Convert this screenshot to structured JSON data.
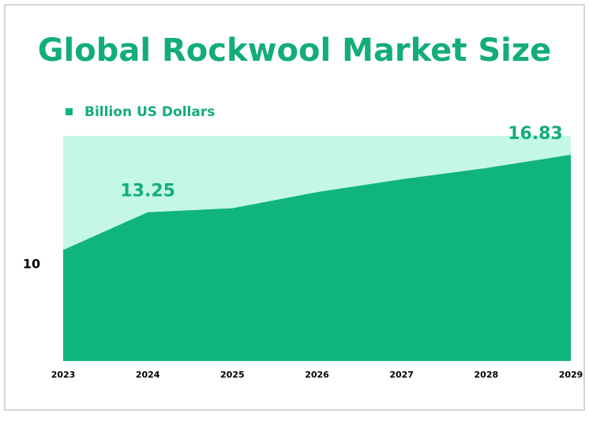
{
  "chart_data": {
    "type": "area",
    "title": "Global Rockwool Market Size",
    "categories": [
      "2023",
      "2024",
      "2025",
      "2026",
      "2027",
      "2028",
      "2029"
    ],
    "series": [
      {
        "name": "Billion US Dollars",
        "color": "#10b47f",
        "values": [
          10.9,
          13.25,
          13.5,
          14.5,
          15.3,
          16.0,
          16.83
        ]
      }
    ],
    "labeled_points": [
      1,
      6
    ],
    "plot_background": "#c5f7e6",
    "ylim": [
      4,
      18
    ],
    "yticks": [
      10
    ]
  }
}
